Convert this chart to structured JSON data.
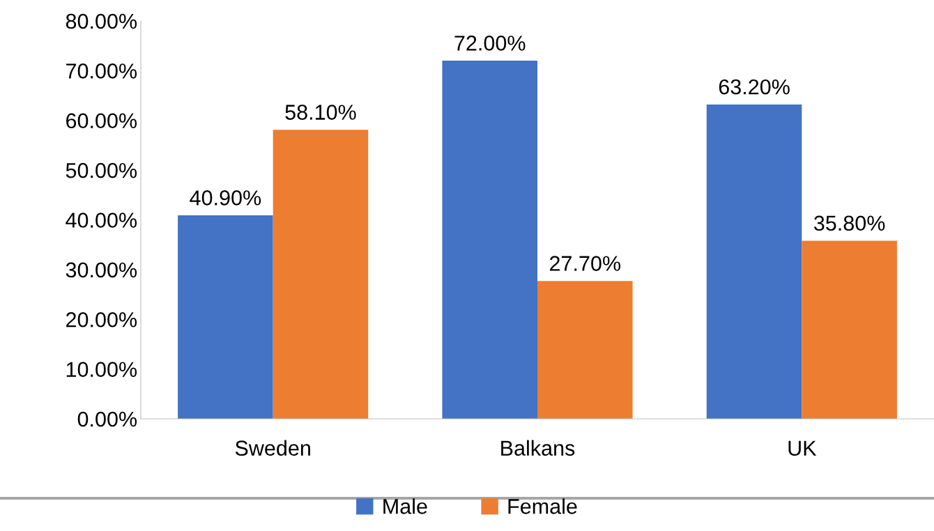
{
  "chart_data": {
    "type": "bar",
    "categories": [
      "Sweden",
      "Balkans",
      "UK"
    ],
    "series": [
      {
        "name": "Male",
        "color": "#4472c4",
        "values": [
          40.9,
          72.0,
          63.2
        ],
        "value_labels": [
          "40.90%",
          "72.00%",
          "63.20%"
        ]
      },
      {
        "name": "Female",
        "color": "#ed7d31",
        "values": [
          58.1,
          27.7,
          35.8
        ],
        "value_labels": [
          "58.10%",
          "27.70%",
          "35.80%"
        ]
      }
    ],
    "ylim": [
      0,
      80
    ],
    "yticks": [
      {
        "value": 0,
        "label": "0.00%"
      },
      {
        "value": 10,
        "label": "10.00%"
      },
      {
        "value": 20,
        "label": "20.00%"
      },
      {
        "value": 30,
        "label": "30.00%"
      },
      {
        "value": 40,
        "label": "40.00%"
      },
      {
        "value": 50,
        "label": "50.00%"
      },
      {
        "value": 60,
        "label": "60.00%"
      },
      {
        "value": 70,
        "label": "70.00%"
      },
      {
        "value": 80,
        "label": "80.00%"
      }
    ],
    "grid": false,
    "legend": "bottom"
  }
}
